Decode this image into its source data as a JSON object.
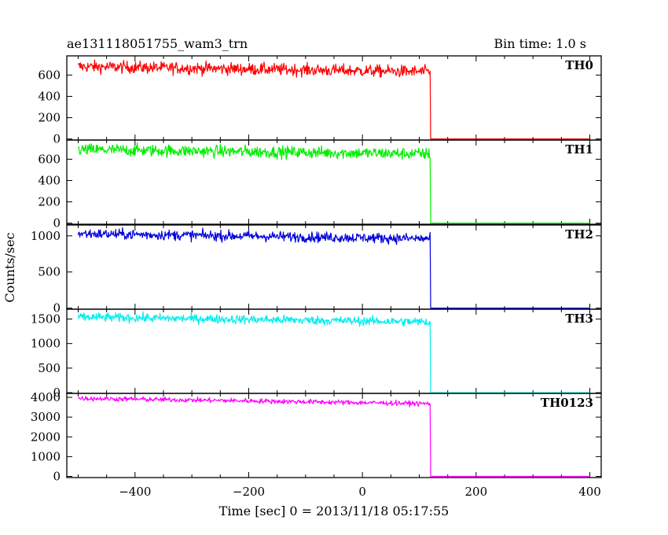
{
  "chart_data": {
    "type": "line",
    "title": "ae131118051755_wam3_trn",
    "bin_time_label": "Bin time: 1.0 s",
    "xlabel": "Time [sec] 0 = 2013/11/18 05:17:55",
    "ylabel": "Counts/sec",
    "xlim": [
      -520,
      420
    ],
    "x_ticks": [
      -400,
      -200,
      0,
      200,
      400
    ],
    "data_x_range": [
      -500,
      400
    ],
    "step_x": 120,
    "panels": [
      {
        "name": "TH0",
        "color": "#ff0000",
        "ylim": [
          -10,
          780
        ],
        "y_ticks": [
          0,
          200,
          400,
          600
        ],
        "level_start": 680,
        "level_end": 630,
        "noise": 28,
        "after_value": 0
      },
      {
        "name": "TH1",
        "color": "#00ee00",
        "ylim": [
          -10,
          780
        ],
        "y_ticks": [
          0,
          200,
          400,
          600
        ],
        "level_start": 690,
        "level_end": 650,
        "noise": 28,
        "after_value": 0
      },
      {
        "name": "TH2",
        "color": "#0000dd",
        "ylim": [
          -15,
          1150
        ],
        "y_ticks": [
          0,
          500,
          1000
        ],
        "level_start": 1030,
        "level_end": 960,
        "noise": 35,
        "after_value": 0
      },
      {
        "name": "TH3",
        "color": "#00eeee",
        "ylim": [
          -15,
          1700
        ],
        "y_ticks": [
          0,
          500,
          1000,
          1500
        ],
        "level_start": 1540,
        "level_end": 1440,
        "noise": 45,
        "after_value": 0
      },
      {
        "name": "TH0123",
        "color": "#ff00ff",
        "ylim": [
          -60,
          4200
        ],
        "y_ticks": [
          0,
          1000,
          2000,
          3000,
          4000
        ],
        "level_start": 3950,
        "level_end": 3680,
        "noise": 60,
        "after_value": 0
      }
    ]
  }
}
